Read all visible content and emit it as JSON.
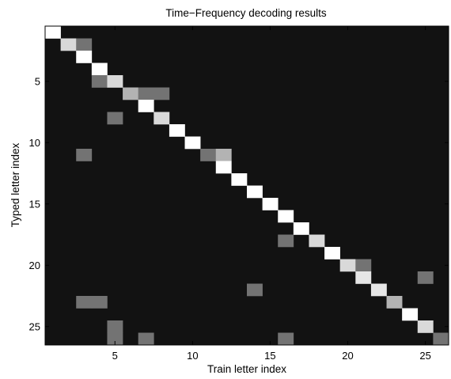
{
  "chart_data": {
    "type": "heatmap",
    "title": "Time−Frequency decoding results",
    "xlabel": "Train letter index",
    "ylabel": "Typed letter index",
    "x_range": [
      1,
      26
    ],
    "y_range": [
      1,
      26
    ],
    "y_axis_direction": "top-to-bottom",
    "x_ticks": [
      "5",
      "10",
      "15",
      "20",
      "25"
    ],
    "y_ticks": [
      "5",
      "10",
      "15",
      "20",
      "25"
    ],
    "colormap": "gray",
    "background_value": 0.07,
    "cells": [
      {
        "x": 1,
        "y": 1,
        "value": 1.0
      },
      {
        "x": 2,
        "y": 2,
        "value": 0.85
      },
      {
        "x": 3,
        "y": 2,
        "value": 0.45
      },
      {
        "x": 3,
        "y": 3,
        "value": 1.0
      },
      {
        "x": 4,
        "y": 4,
        "value": 1.0
      },
      {
        "x": 4,
        "y": 5,
        "value": 0.45
      },
      {
        "x": 5,
        "y": 5,
        "value": 0.85
      },
      {
        "x": 6,
        "y": 6,
        "value": 0.7
      },
      {
        "x": 7,
        "y": 6,
        "value": 0.45
      },
      {
        "x": 8,
        "y": 6,
        "value": 0.45
      },
      {
        "x": 7,
        "y": 7,
        "value": 1.0
      },
      {
        "x": 5,
        "y": 8,
        "value": 0.45
      },
      {
        "x": 8,
        "y": 8,
        "value": 0.85
      },
      {
        "x": 9,
        "y": 9,
        "value": 1.0
      },
      {
        "x": 10,
        "y": 10,
        "value": 1.0
      },
      {
        "x": 3,
        "y": 11,
        "value": 0.45
      },
      {
        "x": 11,
        "y": 11,
        "value": 0.45
      },
      {
        "x": 12,
        "y": 11,
        "value": 0.7
      },
      {
        "x": 12,
        "y": 12,
        "value": 1.0
      },
      {
        "x": 13,
        "y": 13,
        "value": 1.0
      },
      {
        "x": 14,
        "y": 14,
        "value": 1.0
      },
      {
        "x": 15,
        "y": 15,
        "value": 1.0
      },
      {
        "x": 16,
        "y": 16,
        "value": 1.0
      },
      {
        "x": 17,
        "y": 17,
        "value": 1.0
      },
      {
        "x": 16,
        "y": 18,
        "value": 0.45
      },
      {
        "x": 18,
        "y": 18,
        "value": 0.85
      },
      {
        "x": 19,
        "y": 19,
        "value": 1.0
      },
      {
        "x": 20,
        "y": 20,
        "value": 0.85
      },
      {
        "x": 21,
        "y": 20,
        "value": 0.45
      },
      {
        "x": 21,
        "y": 21,
        "value": 0.9
      },
      {
        "x": 25,
        "y": 21,
        "value": 0.45
      },
      {
        "x": 14,
        "y": 22,
        "value": 0.45
      },
      {
        "x": 22,
        "y": 22,
        "value": 0.9
      },
      {
        "x": 3,
        "y": 23,
        "value": 0.45
      },
      {
        "x": 4,
        "y": 23,
        "value": 0.45
      },
      {
        "x": 23,
        "y": 23,
        "value": 0.7
      },
      {
        "x": 24,
        "y": 24,
        "value": 1.0
      },
      {
        "x": 5,
        "y": 25,
        "value": 0.45
      },
      {
        "x": 25,
        "y": 25,
        "value": 0.85
      },
      {
        "x": 5,
        "y": 26,
        "value": 0.45
      },
      {
        "x": 7,
        "y": 26,
        "value": 0.45
      },
      {
        "x": 16,
        "y": 26,
        "value": 0.45
      },
      {
        "x": 26,
        "y": 26,
        "value": 0.45
      }
    ]
  }
}
